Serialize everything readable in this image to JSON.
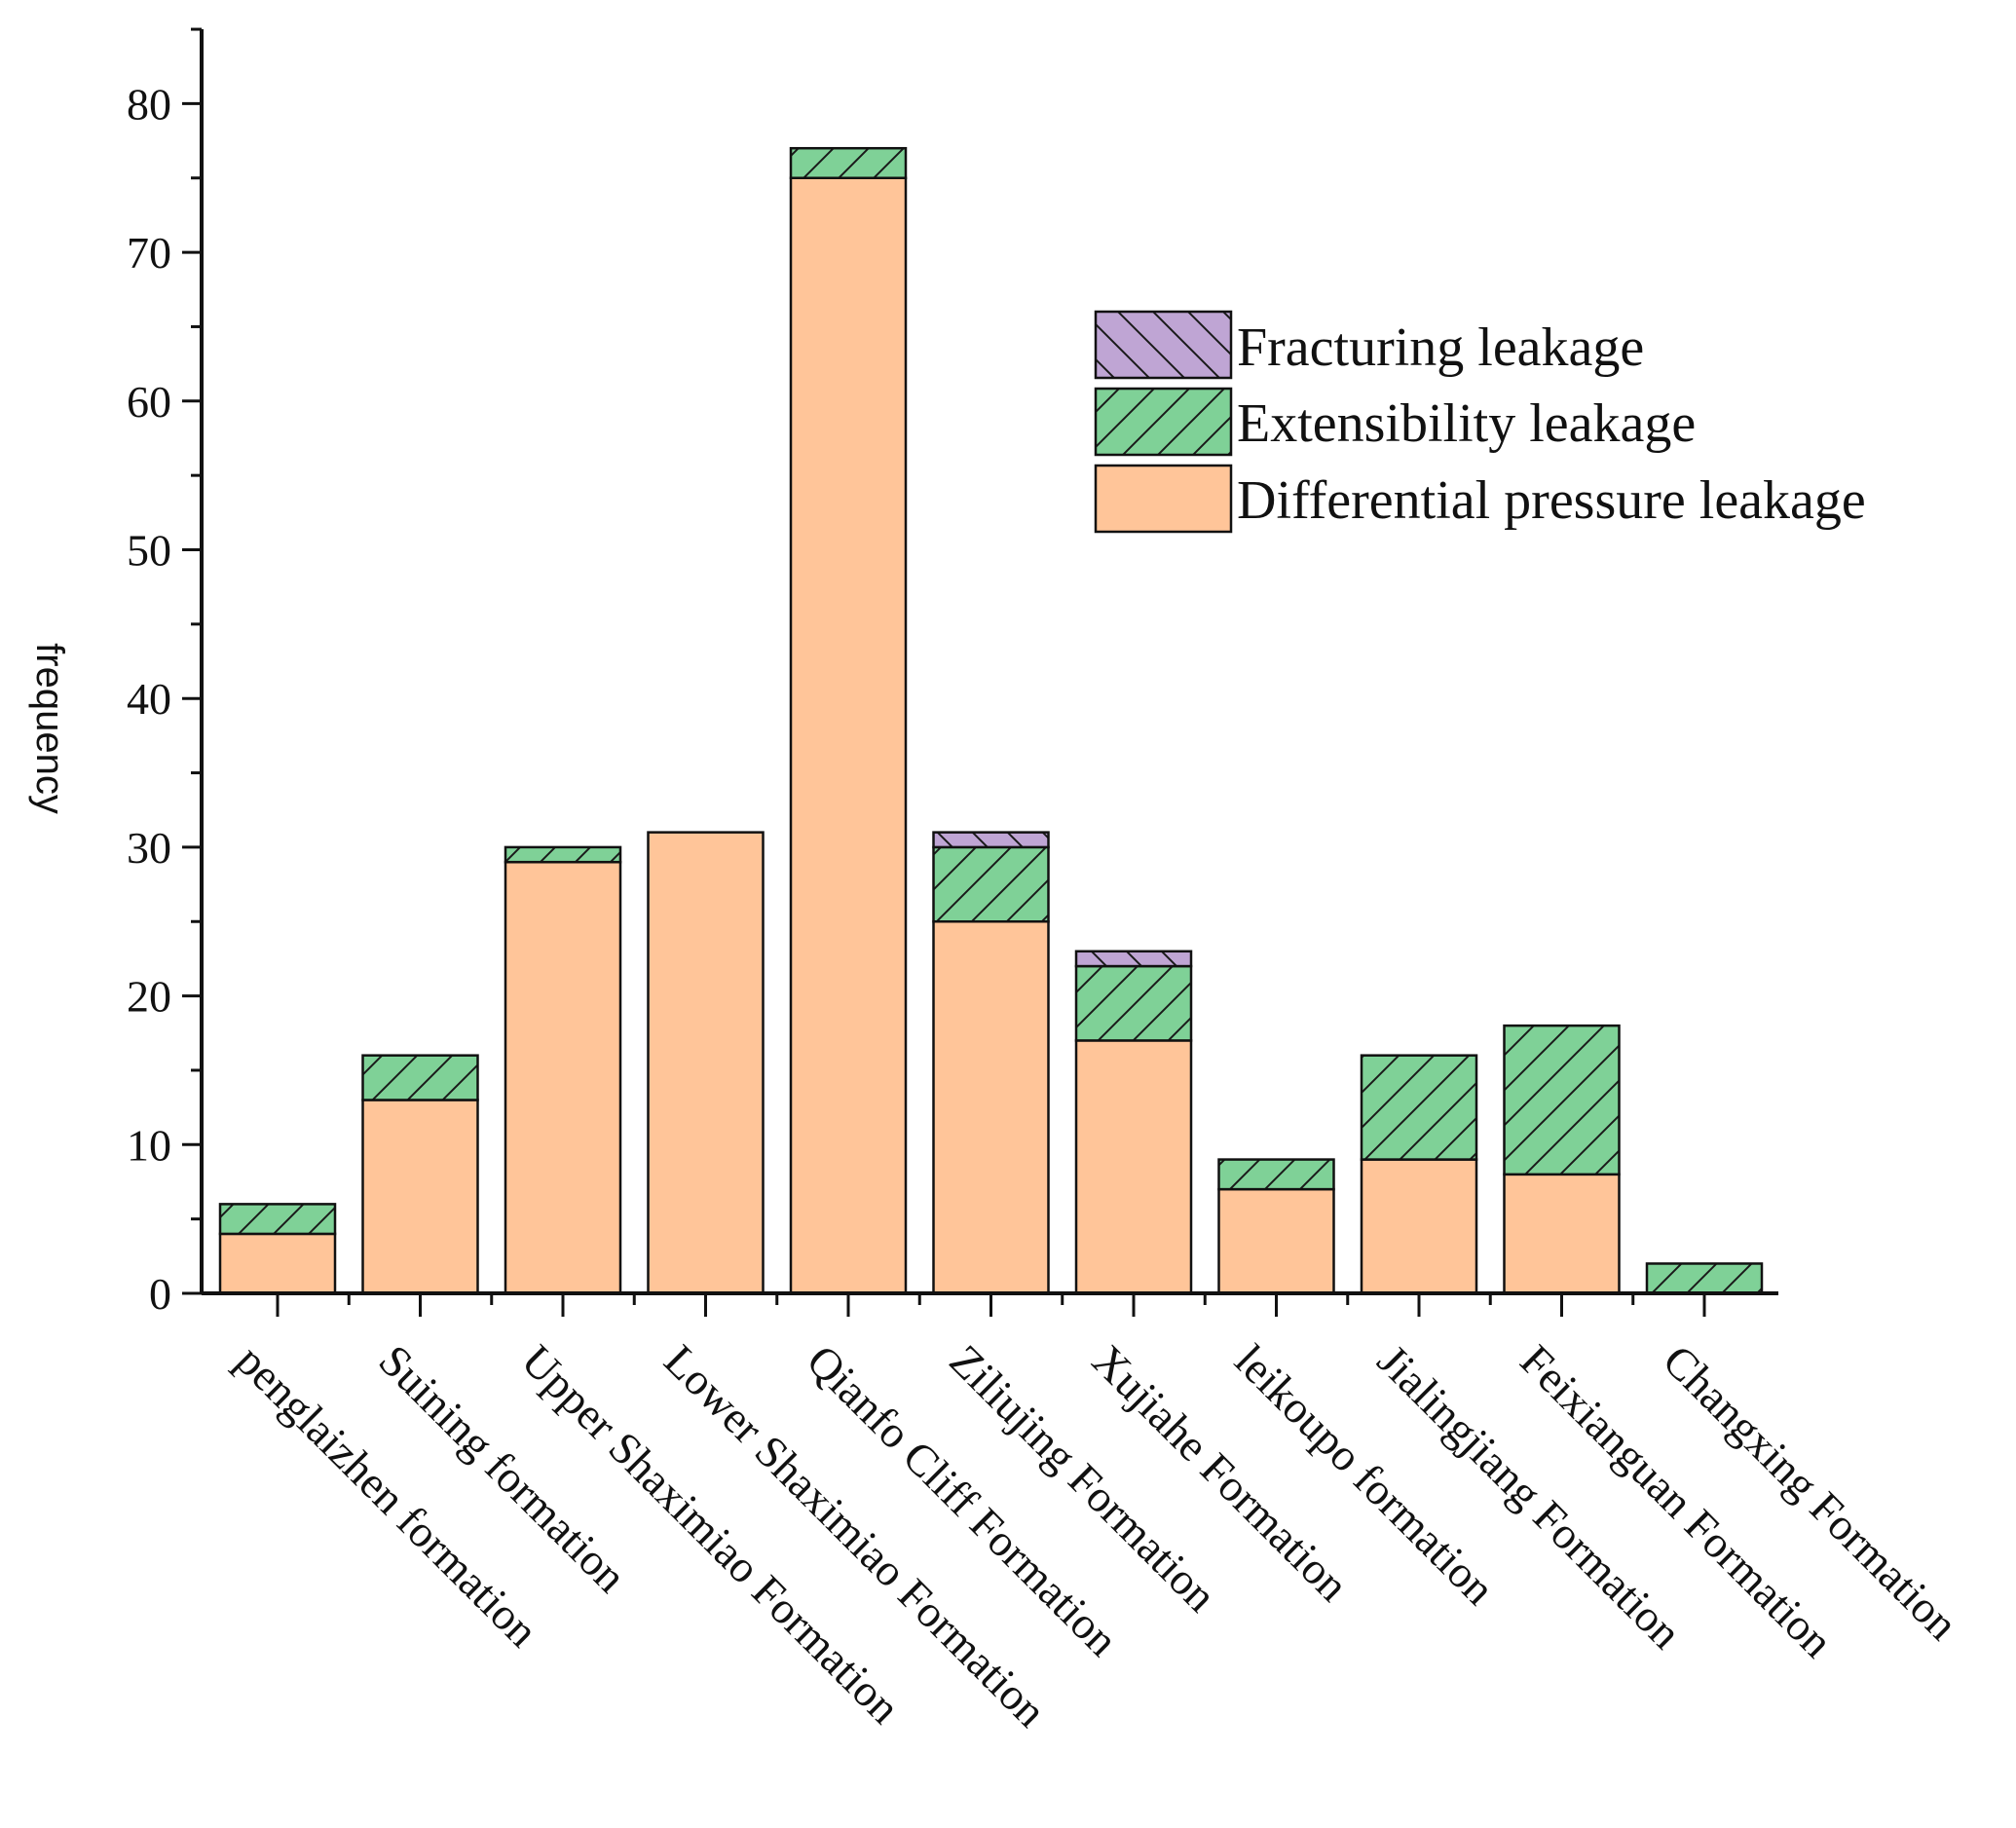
{
  "chart_data": {
    "type": "bar",
    "stacked": true,
    "title": "",
    "xlabel": "",
    "ylabel": "frequency",
    "ylim": [
      0,
      85
    ],
    "yticks": [
      "0",
      "10",
      "20",
      "30",
      "40",
      "50",
      "60",
      "70",
      "80"
    ],
    "categories": [
      "penglaizhen formation",
      "Suining formation",
      "Upper Shaximiao Formation",
      "Lower Shaximiao Formation",
      "Qianfo Cliff Formation",
      "Ziliujing Formation",
      "Xujiahe Formation",
      "leikoupo formation",
      "Jialingjiang Formation",
      "Feixianguan Formation",
      "Changxing Formation"
    ],
    "series": [
      {
        "name": "Differential pressure leakage",
        "color": "#ffc599",
        "pattern": "none",
        "values": [
          4,
          13,
          29,
          31,
          75,
          25,
          17,
          7,
          9,
          8,
          0
        ]
      },
      {
        "name": "Extensibility leakage",
        "color": "#7fd197",
        "pattern": "forward-hatch",
        "values": [
          2,
          3,
          1,
          0,
          2,
          5,
          5,
          2,
          7,
          10,
          2
        ]
      },
      {
        "name": "Fracturing leakage",
        "color": "#bfa5d4",
        "pattern": "back-hatch",
        "values": [
          0,
          0,
          0,
          0,
          0,
          1,
          1,
          0,
          0,
          0,
          0
        ]
      }
    ],
    "legend": {
      "position": "top-right",
      "entries": [
        "Fracturing leakage",
        "Extensibility leakage",
        "Differential pressure leakage"
      ]
    }
  }
}
